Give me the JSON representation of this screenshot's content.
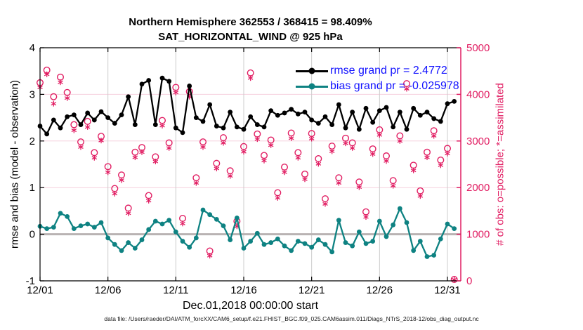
{
  "title": {
    "line1": "Northern Hemisphere 362553 / 368415 = 98.409%",
    "line2": "SAT_HORIZONTAL_WIND @ 925 hPa"
  },
  "legend": {
    "rmse_label": "rmse grand pr = 2.4772",
    "bias_label": "bias grand pr = -0.025978",
    "text_color": "#1414ff"
  },
  "footer": "data file: /Users/raeder/DAI/ATM_forcXX/CAM6_setup/f.e21.FHIST_BGC.f09_025.CAM6assim.011/Diags_NTrS_2018-12/obs_diag_output.nc",
  "colors": {
    "rmse": "#000000",
    "bias": "#0e8282",
    "obs_pink": "#e11d62",
    "grid_vertical": "#cccccc",
    "grid_horizontal": "#f6d0de",
    "zero_line": "#b9b3b3",
    "axis_black": "#000000"
  },
  "chart_data": {
    "type": "line+scatter",
    "title": "Northern Hemisphere 362553 / 368415 = 98.409% | SAT_HORIZONTAL_WIND @ 925 hPa",
    "xlabel": "Dec.01,2018 00:00:00 start",
    "ylabel_left": "rmse and bias (model - observation)",
    "ylabel_right": "# of obs: o=possible; *=assimilated",
    "ylim_left": [
      -1,
      4
    ],
    "ylim_right": [
      0,
      5000
    ],
    "yticks_left": [
      -1,
      0,
      1,
      2,
      3,
      4
    ],
    "yticks_right": [
      0,
      1000,
      2000,
      3000,
      4000,
      5000
    ],
    "x_tick_days": [
      0,
      5,
      10,
      15,
      20,
      25,
      30
    ],
    "x_tick_labels": [
      "12/01",
      "12/06",
      "12/11",
      "12/16",
      "12/21",
      "12/26",
      "12/31"
    ],
    "grid": true,
    "legend_position": "top-right-inside",
    "x_days": [
      0,
      0.5,
      1,
      1.5,
      2,
      2.5,
      3,
      3.5,
      4,
      4.5,
      5,
      5.5,
      6,
      6.5,
      7,
      7.5,
      8,
      8.5,
      9,
      9.5,
      10,
      10.5,
      11,
      11.5,
      12,
      12.5,
      13,
      13.5,
      14,
      14.5,
      15,
      15.5,
      16,
      16.5,
      17,
      17.5,
      18,
      18.5,
      19,
      19.5,
      20,
      20.5,
      21,
      21.5,
      22,
      22.5,
      23,
      23.5,
      24,
      24.5,
      25,
      25.5,
      26,
      26.5,
      27,
      27.5,
      28,
      28.5,
      29,
      29.5,
      30,
      30.5
    ],
    "series": [
      {
        "name": "rmse",
        "axis": "left",
        "marker": "dot",
        "color": "#000000",
        "grand_pr": 2.4772,
        "values": [
          2.32,
          2.15,
          2.45,
          2.28,
          2.52,
          2.56,
          2.35,
          2.6,
          2.45,
          2.63,
          2.5,
          2.38,
          2.56,
          2.95,
          2.35,
          3.22,
          3.3,
          2.35,
          3.35,
          3.28,
          2.28,
          2.18,
          3.18,
          2.5,
          2.42,
          2.78,
          2.32,
          2.28,
          2.62,
          2.3,
          2.25,
          2.52,
          2.35,
          2.3,
          2.65,
          2.55,
          2.6,
          2.68,
          2.58,
          2.62,
          2.45,
          2.38,
          2.52,
          2.35,
          2.78,
          2.28,
          2.62,
          2.25,
          2.7,
          2.4,
          2.65,
          2.72,
          2.3,
          2.62,
          2.25,
          2.7,
          2.55,
          2.62,
          2.48,
          2.42,
          2.8,
          2.85
        ]
      },
      {
        "name": "bias",
        "axis": "left",
        "marker": "dot",
        "color": "#0e8282",
        "grand_pr": -0.025978,
        "values": [
          0.17,
          0.12,
          0.15,
          0.45,
          0.38,
          0.12,
          0.18,
          0.22,
          0.15,
          0.25,
          -0.08,
          -0.22,
          -0.35,
          -0.18,
          -0.3,
          -0.12,
          0.1,
          0.28,
          0.22,
          0.3,
          0.05,
          -0.15,
          -0.28,
          -0.08,
          0.52,
          0.42,
          0.32,
          0.18,
          -0.12,
          0.35,
          -0.3,
          -0.15,
          0.02,
          -0.22,
          -0.18,
          -0.1,
          -0.25,
          -0.35,
          -0.15,
          -0.2,
          -0.28,
          -0.12,
          -0.22,
          -0.38,
          0.3,
          -0.18,
          -0.25,
          0.05,
          -0.2,
          -0.15,
          0.28,
          -0.05,
          0.2,
          0.55,
          0.25,
          -0.35,
          -0.15,
          -0.48,
          -0.45,
          -0.1,
          0.22,
          0.12
        ]
      },
      {
        "name": "possible_obs",
        "axis": "right",
        "marker": "circle",
        "color": "#e11d62",
        "values": [
          4250,
          4520,
          3950,
          4370,
          4040,
          3350,
          2980,
          3420,
          2750,
          3100,
          2450,
          1980,
          2270,
          1560,
          2760,
          2860,
          1830,
          2660,
          3440,
          2960,
          4150,
          1340,
          4060,
          2210,
          2980,
          640,
          2520,
          3070,
          2360,
          1280,
          2880,
          4460,
          3150,
          2690,
          3020,
          1890,
          2440,
          3170,
          2750,
          2290,
          3160,
          2620,
          1760,
          2890,
          2210,
          3060,
          2960,
          2120,
          1480,
          2830,
          3240,
          2680,
          2150,
          3110,
          4230,
          2480,
          1930,
          2760,
          3220,
          2590,
          2840,
          30
        ]
      },
      {
        "name": "assimilated_obs",
        "axis": "right",
        "marker": "asterisk",
        "color": "#e11d62",
        "values": [
          4150,
          4430,
          3800,
          4260,
          3920,
          3230,
          2870,
          3300,
          2640,
          3010,
          2330,
          1870,
          2160,
          1450,
          2650,
          2760,
          1720,
          2560,
          3330,
          2850,
          4040,
          1230,
          3950,
          2100,
          2870,
          540,
          2410,
          2960,
          2250,
          1170,
          2770,
          4350,
          3040,
          2580,
          2910,
          1780,
          2330,
          3060,
          2640,
          2180,
          3050,
          2510,
          1650,
          2780,
          2100,
          2950,
          2850,
          2010,
          1370,
          2720,
          3130,
          2570,
          2040,
          3000,
          4120,
          2370,
          1820,
          2650,
          3110,
          2480,
          2730,
          25
        ]
      }
    ]
  }
}
